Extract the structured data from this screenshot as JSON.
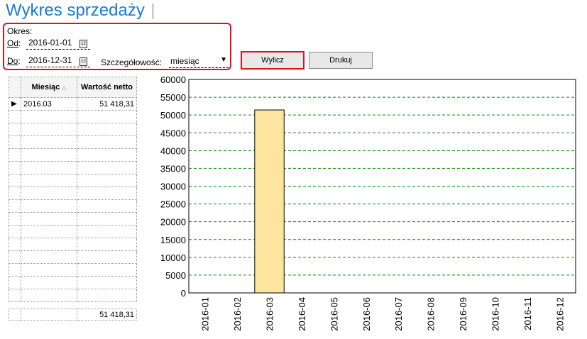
{
  "title": "Wykres sprzedaży",
  "period": {
    "label": "Okres:",
    "from_label": "Od",
    "from_value": "2016-01-01",
    "to_label": "Do",
    "to_value": "2016-12-31",
    "detail_label": "Szczegółowość:",
    "detail_value": "miesiąc",
    "calendar_icon_text": "12"
  },
  "buttons": {
    "calculate": "Wylicz",
    "print": "Drukuj"
  },
  "grid": {
    "columns": [
      "Miesiąc",
      "Wartość netto"
    ],
    "rows": [
      [
        "2016.03",
        "51 418,31"
      ]
    ],
    "empty_rows": 15,
    "total": "51 418,31"
  },
  "colors": {
    "title": "#1a7ad4",
    "highlight": "#e01020",
    "bar": "#fde59f",
    "grid": "#0a8a0a"
  },
  "chart_data": {
    "type": "bar",
    "categories": [
      "2016-01",
      "2016-02",
      "2016-03",
      "2016-04",
      "2016-05",
      "2016-06",
      "2016-07",
      "2016-08",
      "2016-09",
      "2016-10",
      "2016-11",
      "2016-12"
    ],
    "values": [
      0,
      0,
      51418.31,
      0,
      0,
      0,
      0,
      0,
      0,
      0,
      0,
      0
    ],
    "ylim": [
      0,
      60000
    ],
    "yticks": [
      0,
      5000,
      10000,
      15000,
      20000,
      25000,
      30000,
      35000,
      40000,
      45000,
      50000,
      55000,
      60000
    ],
    "grid": "dashed horizontal"
  }
}
